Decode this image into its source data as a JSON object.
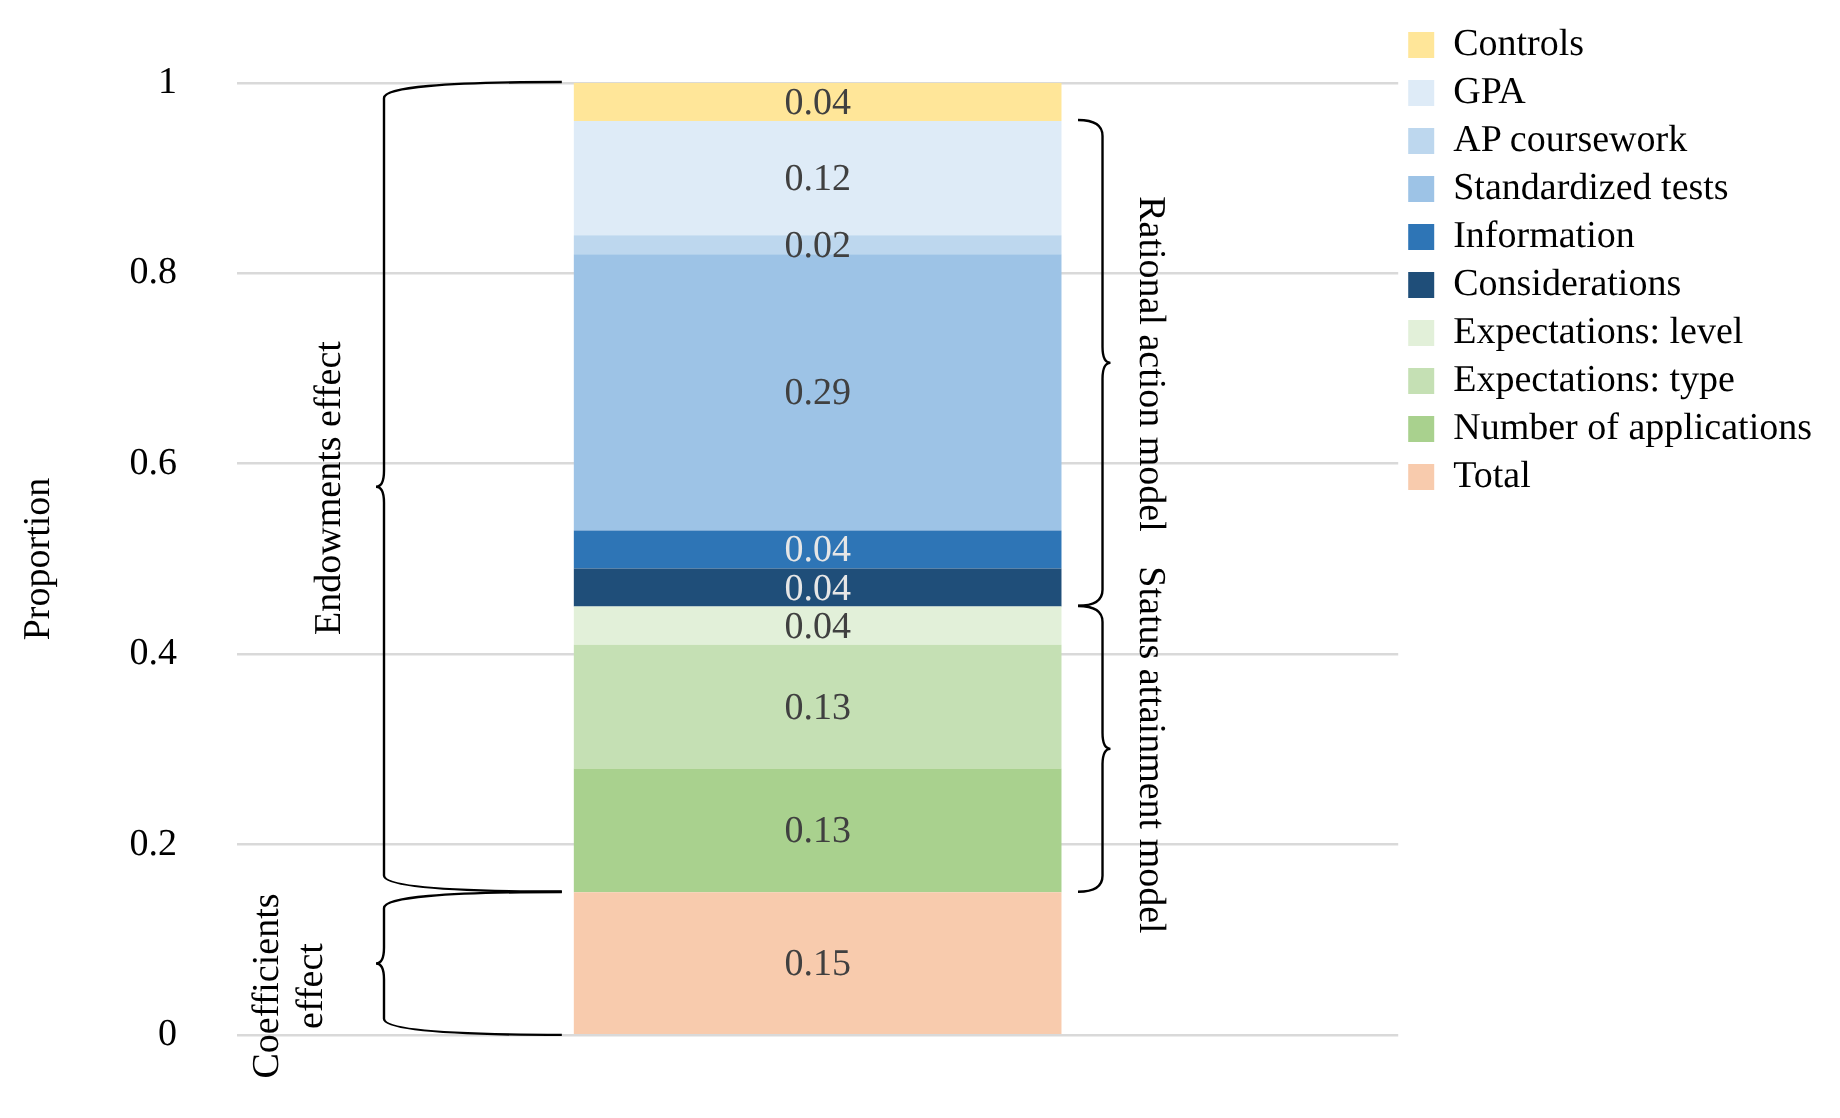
{
  "chart_data": {
    "type": "bar",
    "stacked": true,
    "ylabel": "Proportion",
    "categories": [
      null
    ],
    "ylim": [
      0,
      1
    ],
    "yticks": [
      0,
      0.2,
      0.4,
      0.6,
      0.8,
      1
    ],
    "grid": "y",
    "legend": "right",
    "data_labels": true,
    "series": [
      {
        "name": "Total",
        "color": "#f8cbad",
        "values": [
          0.15
        ]
      },
      {
        "name": "Number of applications",
        "color": "#a9d18e",
        "values": [
          0.13
        ]
      },
      {
        "name": "Expectations: type",
        "color": "#c5e0b4",
        "values": [
          0.13
        ]
      },
      {
        "name": "Expectations: level",
        "color": "#e2f0d9",
        "values": [
          0.04
        ]
      },
      {
        "name": "Considerations",
        "color": "#1f4e79",
        "values": [
          0.04
        ]
      },
      {
        "name": "Information",
        "color": "#2e75b6",
        "values": [
          0.04
        ]
      },
      {
        "name": "Standardized tests",
        "color": "#9dc3e6",
        "values": [
          0.29
        ]
      },
      {
        "name": "AP coursework",
        "color": "#bdd7ee",
        "values": [
          0.02
        ]
      },
      {
        "name": "GPA",
        "color": "#deebf7",
        "values": [
          0.12
        ]
      },
      {
        "name": "Controls",
        "color": "#ffe699",
        "values": [
          0.04
        ]
      }
    ],
    "annotations": [
      "Endowments effect",
      "Coefficients effect",
      "Rational action model",
      "Status attainment model"
    ]
  }
}
